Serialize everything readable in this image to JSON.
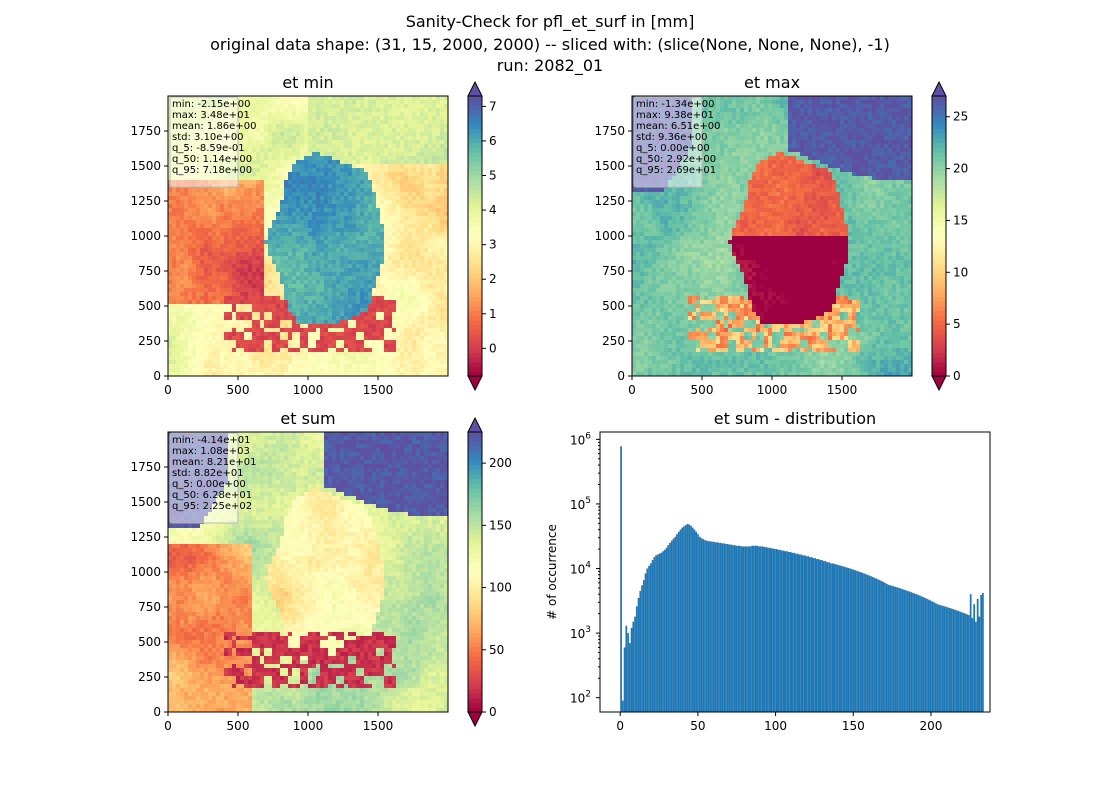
{
  "figure": {
    "title_lines": [
      "Sanity-Check for pfl_et_surf in [mm]",
      "original data shape: (31, 15, 2000, 2000) -- sliced with: (slice(None, None, None), -1)",
      "run: 2082_01"
    ]
  },
  "colors": {
    "spectral": [
      "#9e0142",
      "#d53e4f",
      "#f46d43",
      "#fdae61",
      "#fee08b",
      "#ffffbf",
      "#e6f598",
      "#abdda4",
      "#66c2a5",
      "#3288bd",
      "#5e4fa2"
    ],
    "histogram_bar": "#1f77b4",
    "stats_box_fill": "#ffffff",
    "stats_box_edge": "#b8b8b8"
  },
  "chart_data": [
    {
      "type": "heatmap",
      "title": "et min",
      "x_ticks": [
        "0",
        "500",
        "1000",
        "1500"
      ],
      "y_ticks": [
        "0",
        "250",
        "500",
        "750",
        "1000",
        "1250",
        "1500",
        "1750"
      ],
      "xlim": [
        0,
        2000
      ],
      "ylim": [
        0,
        2000
      ],
      "colorbar": {
        "vmin": -0.8,
        "vmax": 7.3,
        "ticks": [
          "0",
          "1",
          "2",
          "3",
          "4",
          "5",
          "6",
          "7"
        ],
        "tick_values": [
          0,
          1,
          2,
          3,
          4,
          5,
          6,
          7
        ],
        "extend": "both"
      },
      "stats": [
        "min: -2.15e+00",
        "max: 3.48e+01",
        "mean: 1.86e+00",
        "std: 3.10e+00",
        "q_5: -8.59e-01",
        "q_50: 1.14e+00",
        "q_95: 7.18e+00"
      ]
    },
    {
      "type": "heatmap",
      "title": "et max",
      "x_ticks": [
        "0",
        "500",
        "1000",
        "1500"
      ],
      "y_ticks": [
        "0",
        "250",
        "500",
        "750",
        "1000",
        "1250",
        "1500",
        "1750"
      ],
      "xlim": [
        0,
        2000
      ],
      "ylim": [
        0,
        2000
      ],
      "colorbar": {
        "vmin": 0,
        "vmax": 27,
        "ticks": [
          "0",
          "5",
          "10",
          "15",
          "20",
          "25"
        ],
        "tick_values": [
          0,
          5,
          10,
          15,
          20,
          25
        ],
        "extend": "both"
      },
      "stats": [
        "min: -1.34e+00",
        "max: 9.38e+01",
        "mean: 6.51e+00",
        "std: 9.36e+00",
        "q_5: 0.00e+00",
        "q_50: 2.92e+00",
        "q_95: 2.69e+01"
      ]
    },
    {
      "type": "heatmap",
      "title": "et sum",
      "x_ticks": [
        "0",
        "500",
        "1000",
        "1500"
      ],
      "y_ticks": [
        "0",
        "250",
        "500",
        "750",
        "1000",
        "1250",
        "1500",
        "1750"
      ],
      "xlim": [
        0,
        2000
      ],
      "ylim": [
        0,
        2000
      ],
      "colorbar": {
        "vmin": 0,
        "vmax": 225,
        "ticks": [
          "0",
          "50",
          "100",
          "150",
          "200"
        ],
        "tick_values": [
          0,
          50,
          100,
          150,
          200
        ],
        "extend": "both"
      },
      "stats": [
        "min: -4.14e+01",
        "max: 1.08e+03",
        "mean: 8.21e+01",
        "std: 8.82e+01",
        "q_5: 0.00e+00",
        "q_50: 6.28e+01",
        "q_95: 2.25e+02"
      ]
    },
    {
      "type": "bar",
      "title": "et sum - distribution",
      "ylabel": "# of occurrence",
      "y_scale": "log",
      "xlim": [
        -13,
        238
      ],
      "ylim": [
        60,
        1300000
      ],
      "x_ticks": [
        0,
        50,
        100,
        150,
        200
      ],
      "y_ticks": [
        {
          "value": 100,
          "label": "10",
          "exp": "2"
        },
        {
          "value": 1000,
          "label": "10",
          "exp": "3"
        },
        {
          "value": 10000,
          "label": "10",
          "exp": "4"
        },
        {
          "value": 100000,
          "label": "10",
          "exp": "5"
        },
        {
          "value": 1000000,
          "label": "10",
          "exp": "6"
        }
      ],
      "bin_width": 1.125,
      "bin_start": 0,
      "counts": [
        780000,
        90,
        600,
        1300,
        1000,
        700,
        1200,
        1500,
        1800,
        2600,
        3500,
        4500,
        5500,
        6600,
        8400,
        10000,
        11000,
        12000,
        13500,
        15000,
        16000,
        16500,
        17000,
        17500,
        18500,
        19500,
        21000,
        23000,
        25000,
        27000,
        29000,
        31000,
        34000,
        37000,
        40000,
        43000,
        45000,
        47000,
        49000,
        48000,
        46000,
        43000,
        40000,
        37000,
        34000,
        31000,
        29500,
        28500,
        27500,
        27000,
        26500,
        26500,
        26000,
        26000,
        25500,
        25500,
        25000,
        25000,
        24500,
        24500,
        24000,
        24000,
        23500,
        23500,
        23000,
        23000,
        22500,
        22500,
        22500,
        22000,
        22000,
        22000,
        22000,
        22000,
        22000,
        22500,
        22500,
        22500,
        22500,
        22000,
        22000,
        22000,
        21500,
        21500,
        21000,
        21000,
        20500,
        20500,
        20000,
        20000,
        19500,
        19500,
        19000,
        19000,
        18500,
        18500,
        18000,
        18000,
        17500,
        17500,
        17000,
        17000,
        16500,
        16500,
        16000,
        16000,
        15500,
        15500,
        15000,
        15000,
        14500,
        14500,
        14000,
        14000,
        13500,
        13500,
        13000,
        13000,
        12500,
        12500,
        12000,
        12000,
        11800,
        11600,
        11400,
        11200,
        11000,
        10800,
        10600,
        10400,
        10200,
        10000,
        9800,
        9600,
        9400,
        9200,
        9000,
        8800,
        8600,
        8400,
        8200,
        8000,
        7800,
        7600,
        7400,
        7200,
        7000,
        6800,
        6600,
        6400,
        6200,
        6000,
        5800,
        5600,
        5500,
        5400,
        5300,
        5200,
        5100,
        5000,
        4900,
        4800,
        4700,
        4600,
        4500,
        4400,
        4300,
        4200,
        4100,
        4000,
        3900,
        3800,
        3700,
        3600,
        3500,
        3400,
        3300,
        3200,
        3100,
        3000,
        2900,
        2800,
        2750,
        2700,
        2650,
        2600,
        2550,
        2500,
        2450,
        2400,
        2350,
        2300,
        2250,
        2200,
        2150,
        2100,
        2050,
        2000,
        1950,
        1900,
        4000,
        1700,
        2800,
        1500,
        3400,
        1800,
        3900,
        4200
      ]
    }
  ]
}
